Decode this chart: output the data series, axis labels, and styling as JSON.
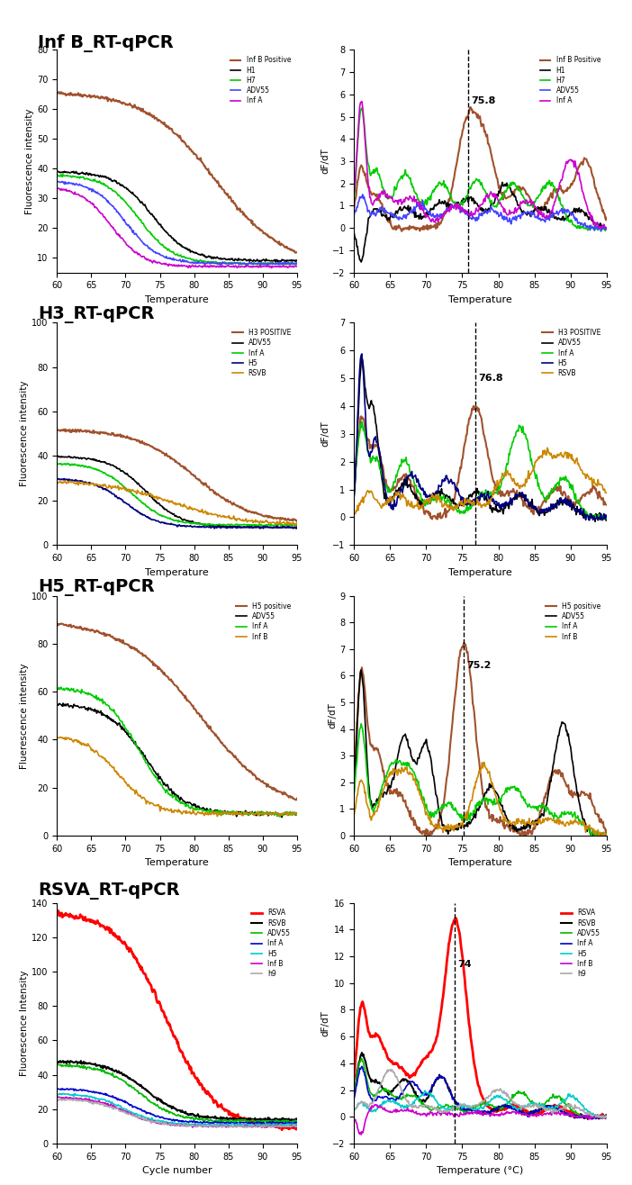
{
  "panels": [
    {
      "title": "Inf B_RT-qPCR",
      "left": {
        "ylabel": "Fluorescence intensity",
        "xlabel": "Temperature",
        "ylim": [
          5,
          80
        ],
        "yticks": [
          10,
          20,
          30,
          40,
          50,
          60,
          70,
          80
        ],
        "xlim": [
          60,
          95
        ],
        "xticks": [
          60,
          65,
          70,
          75,
          80,
          85,
          90,
          95
        ],
        "series": [
          {
            "label": "Inf B Positive",
            "color": "#A0522D",
            "lw": 1.5
          },
          {
            "label": "H1",
            "color": "#000000",
            "lw": 1.2
          },
          {
            "label": "H7",
            "color": "#00CC00",
            "lw": 1.2
          },
          {
            "label": "ADV55",
            "color": "#4444FF",
            "lw": 1.2
          },
          {
            "label": "Inf A",
            "color": "#CC00CC",
            "lw": 1.2
          }
        ]
      },
      "right": {
        "ylabel": "dF/dT",
        "xlabel": "Temperature",
        "ylim": [
          -2,
          8
        ],
        "yticks": [
          -2,
          -1,
          0,
          1,
          2,
          3,
          4,
          5,
          6,
          7,
          8
        ],
        "xlim": [
          60,
          95
        ],
        "xticks": [
          60,
          65,
          70,
          75,
          80,
          85,
          90,
          95
        ],
        "peak_x": 75.8,
        "peak_label": "75.8",
        "series": [
          {
            "label": "Inf B Positive",
            "color": "#A0522D",
            "lw": 1.5
          },
          {
            "label": "H1",
            "color": "#000000",
            "lw": 1.2
          },
          {
            "label": "H7",
            "color": "#00CC00",
            "lw": 1.2
          },
          {
            "label": "ADV55",
            "color": "#4444FF",
            "lw": 1.2
          },
          {
            "label": "Inf A",
            "color": "#CC00CC",
            "lw": 1.2
          }
        ]
      }
    },
    {
      "title": "H3_RT-qPCR",
      "left": {
        "ylabel": "Fluorescence intensity",
        "xlabel": "Temperature",
        "ylim": [
          0,
          100
        ],
        "yticks": [
          0,
          20,
          40,
          60,
          80,
          100
        ],
        "xlim": [
          60,
          95
        ],
        "xticks": [
          60,
          65,
          70,
          75,
          80,
          85,
          90,
          95
        ],
        "series": [
          {
            "label": "H3 POSITIVE",
            "color": "#A0522D",
            "lw": 1.5
          },
          {
            "label": "ADV55",
            "color": "#000000",
            "lw": 1.2
          },
          {
            "label": "Inf A",
            "color": "#00CC00",
            "lw": 1.2
          },
          {
            "label": "H5",
            "color": "#000080",
            "lw": 1.2
          },
          {
            "label": "RSVB",
            "color": "#CC8800",
            "lw": 1.2
          }
        ]
      },
      "right": {
        "ylabel": "dF/dT",
        "xlabel": "Temperature",
        "ylim": [
          -1,
          7
        ],
        "yticks": [
          -1,
          0,
          1,
          2,
          3,
          4,
          5,
          6,
          7
        ],
        "xlim": [
          60,
          95
        ],
        "xticks": [
          60,
          65,
          70,
          75,
          80,
          85,
          90,
          95
        ],
        "peak_x": 76.8,
        "peak_label": "76.8",
        "series": [
          {
            "label": "H3 POSITIVE",
            "color": "#A0522D",
            "lw": 1.5
          },
          {
            "label": "ADV55",
            "color": "#000000",
            "lw": 1.2
          },
          {
            "label": "Inf A",
            "color": "#00CC00",
            "lw": 1.2
          },
          {
            "label": "H5",
            "color": "#000080",
            "lw": 1.2
          },
          {
            "label": "RSVB",
            "color": "#CC8800",
            "lw": 1.2
          }
        ]
      }
    },
    {
      "title": "H5_RT-qPCR",
      "left": {
        "ylabel": "Fluerescence intensity",
        "xlabel": "Temperature",
        "ylim": [
          0,
          100
        ],
        "yticks": [
          0,
          20,
          40,
          60,
          80,
          100
        ],
        "xlim": [
          60,
          95
        ],
        "xticks": [
          60,
          65,
          70,
          75,
          80,
          85,
          90,
          95
        ],
        "series": [
          {
            "label": "H5 positive",
            "color": "#A0522D",
            "lw": 1.5
          },
          {
            "label": "ADV55",
            "color": "#000000",
            "lw": 1.2
          },
          {
            "label": "Inf A",
            "color": "#00CC00",
            "lw": 1.2
          },
          {
            "label": "Inf B",
            "color": "#CC8800",
            "lw": 1.2
          }
        ]
      },
      "right": {
        "ylabel": "dF/dT",
        "xlabel": "Temperature",
        "ylim": [
          0,
          9
        ],
        "yticks": [
          0,
          1,
          2,
          3,
          4,
          5,
          6,
          7,
          8,
          9
        ],
        "xlim": [
          60,
          95
        ],
        "xticks": [
          60,
          65,
          70,
          75,
          80,
          85,
          90,
          95
        ],
        "peak_x": 75.2,
        "peak_label": "75.2",
        "series": [
          {
            "label": "H5 positive",
            "color": "#A0522D",
            "lw": 1.5
          },
          {
            "label": "ADV55",
            "color": "#000000",
            "lw": 1.2
          },
          {
            "label": "Inf A",
            "color": "#00CC00",
            "lw": 1.2
          },
          {
            "label": "Inf B",
            "color": "#CC8800",
            "lw": 1.2
          }
        ]
      }
    },
    {
      "title": "RSVA_RT-qPCR",
      "left": {
        "ylabel": "Fluorescence Intensity",
        "xlabel": "Cycle number",
        "ylim": [
          0,
          140
        ],
        "yticks": [
          0,
          20,
          40,
          60,
          80,
          100,
          120,
          140
        ],
        "xlim": [
          60,
          95
        ],
        "xticks": [
          60,
          65,
          70,
          75,
          80,
          85,
          90,
          95
        ],
        "series": [
          {
            "label": "RSVA",
            "color": "#FF0000",
            "lw": 2.0
          },
          {
            "label": "RSVB",
            "color": "#000000",
            "lw": 1.5
          },
          {
            "label": "ADV55",
            "color": "#00BB00",
            "lw": 1.2
          },
          {
            "label": "Inf A",
            "color": "#0000CC",
            "lw": 1.2
          },
          {
            "label": "H5",
            "color": "#00CCCC",
            "lw": 1.2
          },
          {
            "label": "Inf B",
            "color": "#CC00CC",
            "lw": 1.2
          },
          {
            "label": "h9",
            "color": "#AAAAAA",
            "lw": 1.2
          }
        ]
      },
      "right": {
        "ylabel": "dF/dT",
        "xlabel": "Temperature (°C)",
        "ylim": [
          -2,
          16
        ],
        "yticks": [
          -2,
          0,
          2,
          4,
          6,
          8,
          10,
          12,
          14,
          16
        ],
        "xlim": [
          60,
          95
        ],
        "xticks": [
          60,
          65,
          70,
          75,
          80,
          85,
          90,
          95
        ],
        "peak_x": 74,
        "peak_label": "74",
        "series": [
          {
            "label": "RSVA",
            "color": "#FF0000",
            "lw": 2.0
          },
          {
            "label": "RSVB",
            "color": "#000000",
            "lw": 1.5
          },
          {
            "label": "ADV55",
            "color": "#00BB00",
            "lw": 1.2
          },
          {
            "label": "Inf A",
            "color": "#0000CC",
            "lw": 1.2
          },
          {
            "label": "H5",
            "color": "#00CCCC",
            "lw": 1.2
          },
          {
            "label": "Inf B",
            "color": "#CC00CC",
            "lw": 1.2
          },
          {
            "label": "h9",
            "color": "#AAAAAA",
            "lw": 1.2
          }
        ]
      }
    }
  ]
}
